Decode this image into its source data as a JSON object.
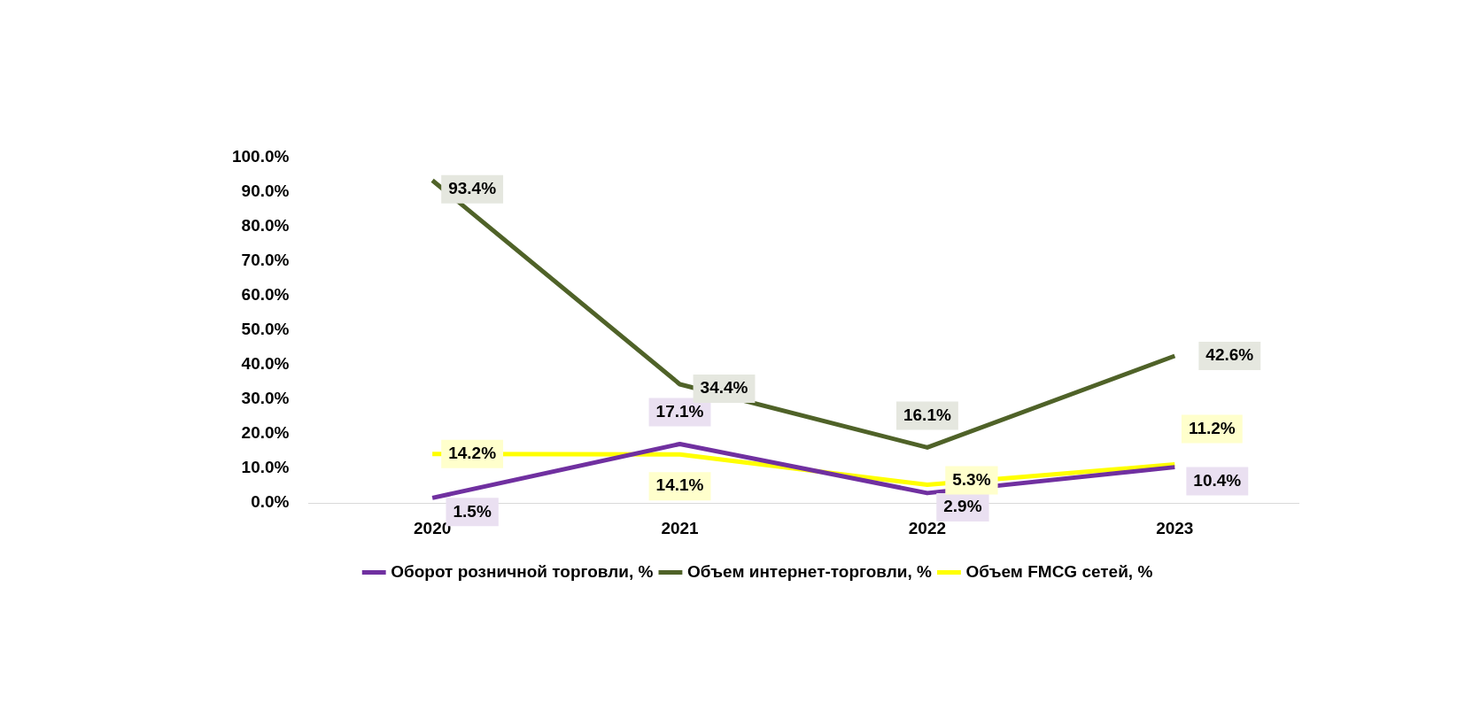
{
  "chart_data": {
    "type": "line",
    "categories": [
      "2020",
      "2021",
      "2022",
      "2023"
    ],
    "series": [
      {
        "name": "Оборот розничной торговли, %",
        "color": "#7030a0",
        "values": [
          1.5,
          17.1,
          2.9,
          10.4
        ],
        "value_labels": [
          "1.5%",
          "17.1%",
          "2.9%",
          "10.4%"
        ]
      },
      {
        "name": "Объем интернет-торговли, %",
        "color": "#4f6228",
        "values": [
          93.4,
          34.4,
          16.1,
          42.6
        ],
        "value_labels": [
          "93.4%",
          "34.4%",
          "16.1%",
          "42.6%"
        ]
      },
      {
        "name": "Объем FMCG сетей, %",
        "color": "#ffff00",
        "values": [
          14.2,
          14.1,
          5.3,
          11.2
        ],
        "value_labels": [
          "14.2%",
          "14.1%",
          "5.3%",
          "11.2%"
        ]
      }
    ],
    "ylim": [
      0,
      100
    ],
    "yticks": [
      {
        "value": 0,
        "label": "0.0%"
      },
      {
        "value": 10,
        "label": "10.0%"
      },
      {
        "value": 20,
        "label": "20.0%"
      },
      {
        "value": 30,
        "label": "30.0%"
      },
      {
        "value": 40,
        "label": "40.0%"
      },
      {
        "value": 50,
        "label": "50.0%"
      },
      {
        "value": 60,
        "label": "60.0%"
      },
      {
        "value": 70,
        "label": "70.0%"
      },
      {
        "value": 80,
        "label": "80.0%"
      },
      {
        "value": 90,
        "label": "90.0%"
      },
      {
        "value": 100,
        "label": "100.0%"
      }
    ],
    "grid": false,
    "legend": "bottom",
    "marker": "none",
    "line_style": "solid"
  }
}
